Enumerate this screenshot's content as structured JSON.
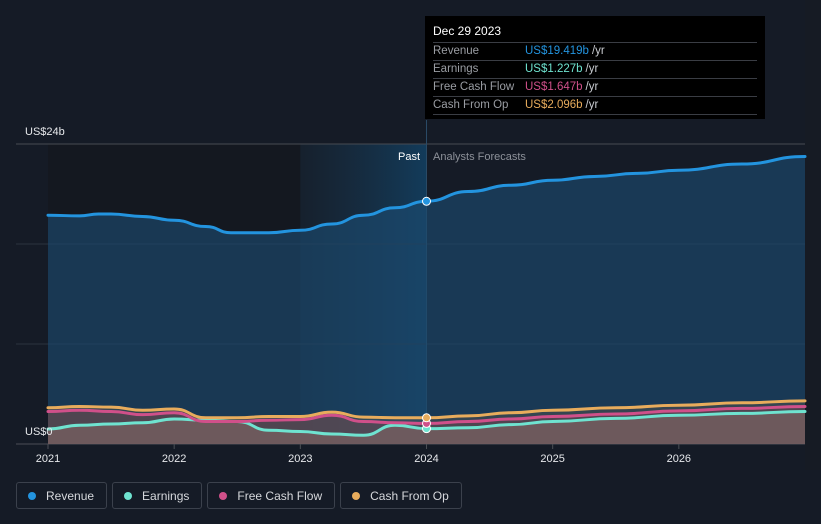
{
  "tooltip": {
    "date": "Dec 29 2023",
    "rows": [
      {
        "label": "Revenue",
        "value": "US$19.419b",
        "unit": "/yr",
        "color": "#2394df"
      },
      {
        "label": "Earnings",
        "value": "US$1.227b",
        "unit": "/yr",
        "color": "#6fe3d0"
      },
      {
        "label": "Free Cash Flow",
        "value": "US$1.647b",
        "unit": "/yr",
        "color": "#d0508a"
      },
      {
        "label": "Cash From Op",
        "value": "US$2.096b",
        "unit": "/yr",
        "color": "#e8ac5c"
      }
    ]
  },
  "labels": {
    "past": "Past",
    "forecast": "Analysts Forecasts"
  },
  "legend": [
    {
      "label": "Revenue",
      "color": "#2394df"
    },
    {
      "label": "Earnings",
      "color": "#6fe3d0"
    },
    {
      "label": "Free Cash Flow",
      "color": "#d0508a"
    },
    {
      "label": "Cash From Op",
      "color": "#e8ac5c"
    }
  ],
  "chart_data": {
    "type": "line",
    "title": "",
    "xlabel": "",
    "ylabel": "",
    "y_tick_labels": [
      "US$0",
      "US$24b"
    ],
    "ylim": [
      0,
      24
    ],
    "xlim": [
      2021.0,
      2027.0
    ],
    "x_tick_labels": [
      "2021",
      "2022",
      "2023",
      "2024",
      "2025",
      "2026"
    ],
    "x_ticks": [
      2021,
      2022,
      2023,
      2024,
      2025,
      2026
    ],
    "grid": true,
    "past_shaded_range": [
      2023.0,
      2024.0
    ],
    "divider_x": 2024.0,
    "highlight_date": "Dec 29 2023",
    "series": [
      {
        "name": "Revenue",
        "color": "#2394df",
        "x": [
          2021.0,
          2021.25,
          2021.4,
          2021.5,
          2021.75,
          2022.0,
          2022.25,
          2022.45,
          2022.75,
          2023.0,
          2023.25,
          2023.5,
          2023.75,
          2024.0,
          2024.33,
          2024.67,
          2025.0,
          2025.33,
          2025.67,
          2026.0,
          2026.5,
          2027.0
        ],
        "values": [
          18.3,
          18.25,
          18.4,
          18.4,
          18.2,
          17.9,
          17.4,
          16.9,
          16.9,
          17.1,
          17.6,
          18.3,
          18.9,
          19.419,
          20.2,
          20.7,
          21.1,
          21.4,
          21.65,
          21.9,
          22.4,
          23.0
        ]
      },
      {
        "name": "Earnings",
        "color": "#6fe3d0",
        "x": [
          2021.0,
          2021.25,
          2021.5,
          2021.75,
          2022.0,
          2022.25,
          2022.5,
          2022.75,
          2023.0,
          2023.25,
          2023.5,
          2023.75,
          2024.0,
          2024.33,
          2024.67,
          2025.0,
          2025.5,
          2026.0,
          2026.5,
          2027.0
        ],
        "values": [
          1.2,
          1.5,
          1.6,
          1.7,
          2.0,
          1.9,
          1.8,
          1.1,
          1.0,
          0.8,
          0.7,
          1.5,
          1.227,
          1.3,
          1.55,
          1.8,
          2.05,
          2.3,
          2.45,
          2.6
        ]
      },
      {
        "name": "Free Cash Flow",
        "color": "#d0508a",
        "x": [
          2021.0,
          2021.25,
          2021.5,
          2021.75,
          2022.0,
          2022.25,
          2022.5,
          2022.75,
          2023.0,
          2023.25,
          2023.5,
          2023.75,
          2024.0,
          2024.33,
          2024.67,
          2025.0,
          2025.5,
          2026.0,
          2026.5,
          2027.0
        ],
        "values": [
          2.6,
          2.7,
          2.6,
          2.35,
          2.5,
          1.8,
          1.8,
          1.9,
          1.95,
          2.3,
          1.8,
          1.7,
          1.647,
          1.8,
          2.0,
          2.2,
          2.4,
          2.65,
          2.85,
          3.0
        ]
      },
      {
        "name": "Cash From Op",
        "color": "#e8ac5c",
        "x": [
          2021.0,
          2021.25,
          2021.5,
          2021.75,
          2022.0,
          2022.25,
          2022.5,
          2022.75,
          2023.0,
          2023.25,
          2023.5,
          2023.75,
          2024.0,
          2024.33,
          2024.67,
          2025.0,
          2025.5,
          2026.0,
          2026.5,
          2027.0
        ],
        "values": [
          2.9,
          3.0,
          2.95,
          2.7,
          2.8,
          2.1,
          2.1,
          2.2,
          2.2,
          2.55,
          2.15,
          2.1,
          2.096,
          2.25,
          2.5,
          2.7,
          2.9,
          3.1,
          3.3,
          3.45
        ]
      }
    ]
  }
}
